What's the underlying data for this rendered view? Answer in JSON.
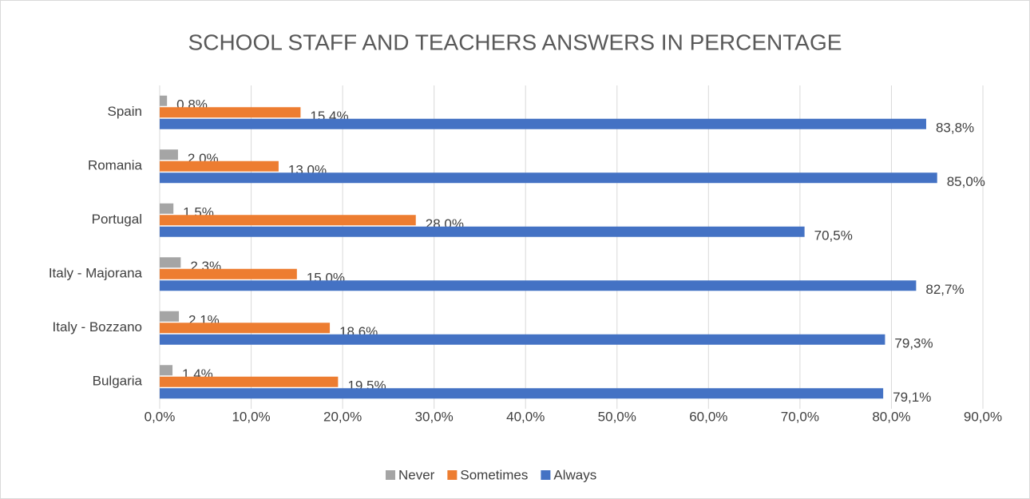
{
  "chart_data": {
    "type": "hbar",
    "title": "SCHOOL STAFF AND TEACHERS ANSWERS IN PERCENTAGE",
    "categories": [
      "Spain",
      "Romania",
      "Portugal",
      "Italy - Majorana",
      "Italy - Bozzano",
      "Bulgaria"
    ],
    "series": [
      {
        "name": "Never",
        "color": "#a5a5a5",
        "values": [
          0.8,
          2.0,
          1.5,
          2.3,
          2.1,
          1.4
        ],
        "value_labels": [
          "0,8%",
          "2,0%",
          "1,5%",
          "2,3%",
          "2,1%",
          "1,4%"
        ]
      },
      {
        "name": "Sometimes",
        "color": "#ed7d31",
        "values": [
          15.4,
          13.0,
          28.0,
          15.0,
          18.6,
          19.5
        ],
        "value_labels": [
          "15,4%",
          "13,0%",
          "28,0%",
          "15,0%",
          "18,6%",
          "19,5%"
        ]
      },
      {
        "name": "Always",
        "color": "#4472c4",
        "values": [
          83.8,
          85.0,
          70.5,
          82.7,
          79.3,
          79.1
        ],
        "value_labels": [
          "83,8%",
          "85,0%",
          "70,5%",
          "82,7%",
          "79,3%",
          "79,1%"
        ]
      }
    ],
    "xlim": [
      0,
      90
    ],
    "xticks": [
      {
        "value": 0,
        "label": "0,0%"
      },
      {
        "value": 10,
        "label": "10,0%"
      },
      {
        "value": 20,
        "label": "20,0%"
      },
      {
        "value": 30,
        "label": "30,0%"
      },
      {
        "value": 40,
        "label": "40,0%"
      },
      {
        "value": 50,
        "label": "50,0%"
      },
      {
        "value": 60,
        "label": "60,0%"
      },
      {
        "value": 70,
        "label": "70,0%"
      },
      {
        "value": 80,
        "label": "80,0%"
      },
      {
        "value": 90,
        "label": "90,0%"
      }
    ],
    "grid": true,
    "legend": "bottom"
  }
}
